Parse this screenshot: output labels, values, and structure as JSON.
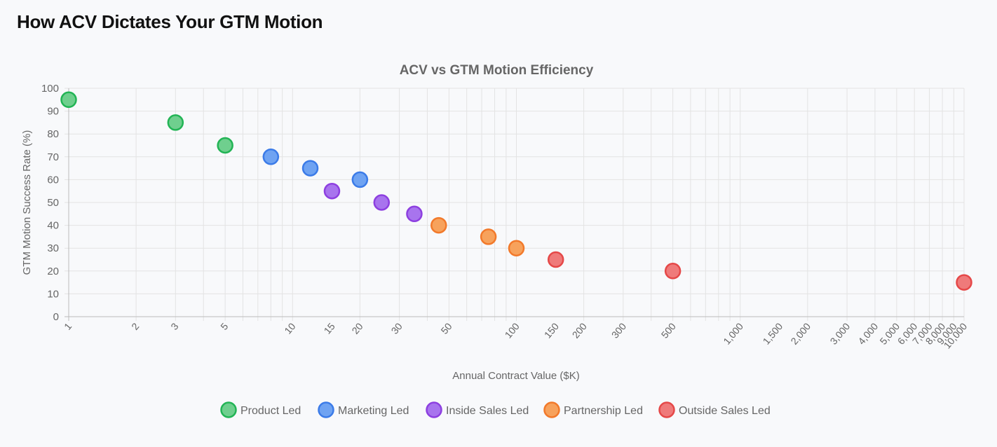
{
  "page": {
    "title": "How ACV Dictates Your GTM Motion"
  },
  "chart_data": {
    "type": "scatter",
    "title": "ACV vs GTM Motion Efficiency",
    "xlabel": "Annual Contract Value ($K)",
    "ylabel": "GTM Motion Success Rate (%)",
    "xscale": "log",
    "xlim": [
      1,
      10000
    ],
    "ylim": [
      0,
      100
    ],
    "grid": true,
    "legend_position": "bottom",
    "x_ticks": [
      {
        "value": 1,
        "label": "1"
      },
      {
        "value": 2,
        "label": "2"
      },
      {
        "value": 3,
        "label": "3"
      },
      {
        "value": 5,
        "label": "5"
      },
      {
        "value": 10,
        "label": "10"
      },
      {
        "value": 15,
        "label": "15"
      },
      {
        "value": 20,
        "label": "20"
      },
      {
        "value": 30,
        "label": "30"
      },
      {
        "value": 50,
        "label": "50"
      },
      {
        "value": 100,
        "label": "100"
      },
      {
        "value": 150,
        "label": "150"
      },
      {
        "value": 200,
        "label": "200"
      },
      {
        "value": 300,
        "label": "300"
      },
      {
        "value": 500,
        "label": "500"
      },
      {
        "value": 1000,
        "label": "1,000"
      },
      {
        "value": 1500,
        "label": "1,500"
      },
      {
        "value": 2000,
        "label": "2,000"
      },
      {
        "value": 3000,
        "label": "3,000"
      },
      {
        "value": 4000,
        "label": "4,000"
      },
      {
        "value": 5000,
        "label": "5,000"
      },
      {
        "value": 6000,
        "label": "6,000"
      },
      {
        "value": 7000,
        "label": "7,000"
      },
      {
        "value": 8000,
        "label": "8,000"
      },
      {
        "value": 9000,
        "label": "9,000"
      },
      {
        "value": 10000,
        "label": "10,000"
      }
    ],
    "y_ticks": [
      {
        "value": 0,
        "label": "0"
      },
      {
        "value": 10,
        "label": "10"
      },
      {
        "value": 20,
        "label": "20"
      },
      {
        "value": 30,
        "label": "30"
      },
      {
        "value": 40,
        "label": "40"
      },
      {
        "value": 50,
        "label": "50"
      },
      {
        "value": 60,
        "label": "60"
      },
      {
        "value": 70,
        "label": "70"
      },
      {
        "value": 80,
        "label": "80"
      },
      {
        "value": 90,
        "label": "90"
      },
      {
        "value": 100,
        "label": "100"
      }
    ],
    "series": [
      {
        "name": "Product Led",
        "fill": "#6fcf8e",
        "stroke": "#22b455",
        "points": [
          {
            "x": 1,
            "y": 95
          },
          {
            "x": 3,
            "y": 85
          },
          {
            "x": 5,
            "y": 75
          }
        ]
      },
      {
        "name": "Marketing Led",
        "fill": "#6fa3f2",
        "stroke": "#3b7be8",
        "points": [
          {
            "x": 8,
            "y": 70
          },
          {
            "x": 12,
            "y": 65
          },
          {
            "x": 20,
            "y": 60
          }
        ]
      },
      {
        "name": "Inside Sales Led",
        "fill": "#a874ee",
        "stroke": "#8d3fe0",
        "points": [
          {
            "x": 15,
            "y": 55
          },
          {
            "x": 25,
            "y": 50
          },
          {
            "x": 35,
            "y": 45
          }
        ]
      },
      {
        "name": "Partnership Led",
        "fill": "#f7a25c",
        "stroke": "#f2792a",
        "points": [
          {
            "x": 45,
            "y": 40
          },
          {
            "x": 75,
            "y": 35
          },
          {
            "x": 100,
            "y": 30
          }
        ]
      },
      {
        "name": "Outside Sales Led",
        "fill": "#ef7a7a",
        "stroke": "#e54848",
        "points": [
          {
            "x": 150,
            "y": 25
          },
          {
            "x": 500,
            "y": 20
          },
          {
            "x": 10000,
            "y": 15
          }
        ]
      }
    ]
  }
}
